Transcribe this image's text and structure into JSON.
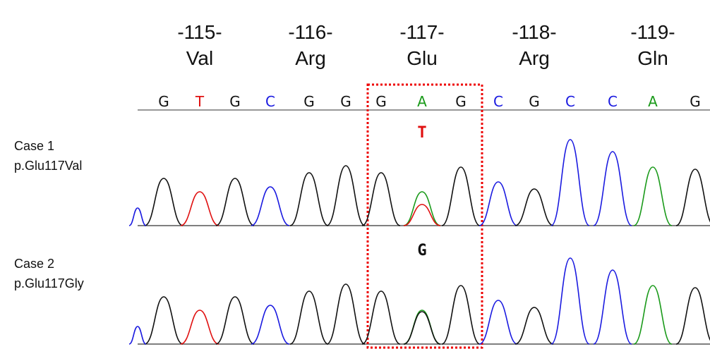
{
  "codons": [
    {
      "number": "-115-",
      "amino_acid": "Val"
    },
    {
      "number": "-116-",
      "amino_acid": "Arg"
    },
    {
      "number": "-117-",
      "amino_acid": "Glu"
    },
    {
      "number": "-118-",
      "amino_acid": "Arg"
    },
    {
      "number": "-119-",
      "amino_acid": "Gln"
    }
  ],
  "bases": [
    "G",
    "T",
    "G",
    "C",
    "G",
    "G",
    "G",
    "A",
    "G",
    "C",
    "G",
    "C",
    "C",
    "A",
    "G"
  ],
  "cases": [
    {
      "label": "Case 1",
      "variant": "p.Glu117Val",
      "call": "T"
    },
    {
      "label": "Case 2",
      "variant": "p.Glu117Gly",
      "call": "G"
    }
  ]
}
